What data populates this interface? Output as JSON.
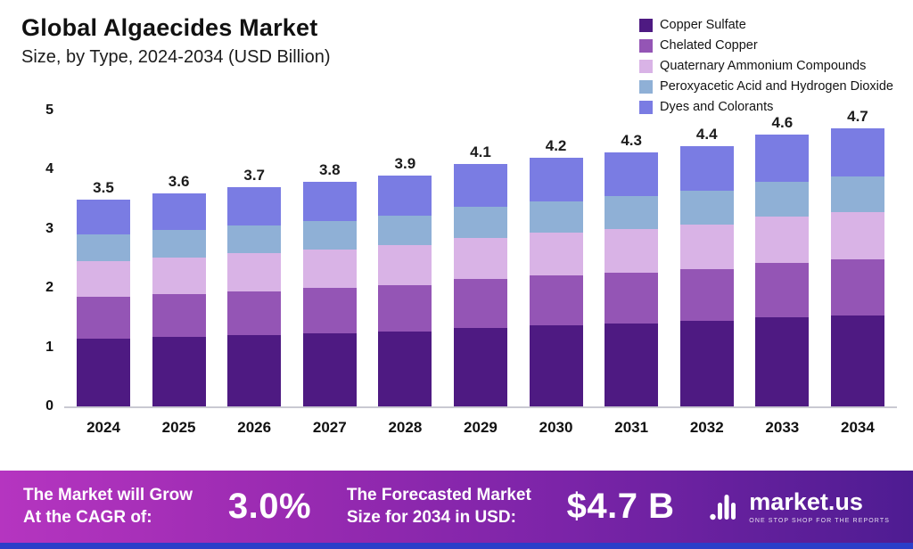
{
  "header": {
    "title": "Global Algaecides Market",
    "subtitle": "Size, by Type, 2024-2034 (USD Billion)"
  },
  "chart_data": {
    "type": "bar",
    "stacked": true,
    "title": "Global Algaecides Market Size, by Type, 2024-2034 (USD Billion)",
    "categories": [
      "2024",
      "2025",
      "2026",
      "2027",
      "2028",
      "2029",
      "2030",
      "2031",
      "2032",
      "2033",
      "2034"
    ],
    "totals": [
      3.5,
      3.6,
      3.7,
      3.8,
      3.9,
      4.1,
      4.2,
      4.3,
      4.4,
      4.6,
      4.7
    ],
    "series": [
      {
        "name": "Copper Sulfate",
        "color": "#4e1a82",
        "values": [
          1.15,
          1.18,
          1.21,
          1.24,
          1.27,
          1.33,
          1.37,
          1.4,
          1.44,
          1.5,
          1.54
        ]
      },
      {
        "name": "Chelated Copper",
        "color": "#9455b5",
        "values": [
          0.7,
          0.72,
          0.74,
          0.76,
          0.78,
          0.82,
          0.84,
          0.86,
          0.88,
          0.92,
          0.94
        ]
      },
      {
        "name": "Quaternary Ammonium Compounds",
        "color": "#d9b3e6",
        "values": [
          0.6,
          0.62,
          0.64,
          0.65,
          0.67,
          0.7,
          0.72,
          0.74,
          0.75,
          0.79,
          0.8
        ]
      },
      {
        "name": "Peroxyacetic Acid and Hydrogen Dioxide",
        "color": "#8fb0d6",
        "values": [
          0.45,
          0.46,
          0.47,
          0.49,
          0.5,
          0.53,
          0.54,
          0.55,
          0.57,
          0.59,
          0.61
        ]
      },
      {
        "name": "Dyes and Colorants",
        "color": "#7a7ce3",
        "values": [
          0.6,
          0.62,
          0.64,
          0.66,
          0.68,
          0.72,
          0.73,
          0.75,
          0.76,
          0.8,
          0.81
        ]
      }
    ],
    "xlabel": "",
    "ylabel": "",
    "ylim": [
      0,
      5
    ],
    "yticks": [
      0,
      1,
      2,
      3,
      4,
      5
    ],
    "grid": false,
    "legend_position": "top-right"
  },
  "banner": {
    "cagr_label_line1": "The Market will Grow",
    "cagr_label_line2": "At the CAGR of:",
    "cagr_value": "3.0%",
    "forecast_label_line1": "The Forecasted Market",
    "forecast_label_line2": "Size for 2034 in USD:",
    "forecast_value": "$4.7 B",
    "brand_name": "market.us",
    "brand_tagline": "ONE STOP SHOP FOR THE REPORTS"
  }
}
